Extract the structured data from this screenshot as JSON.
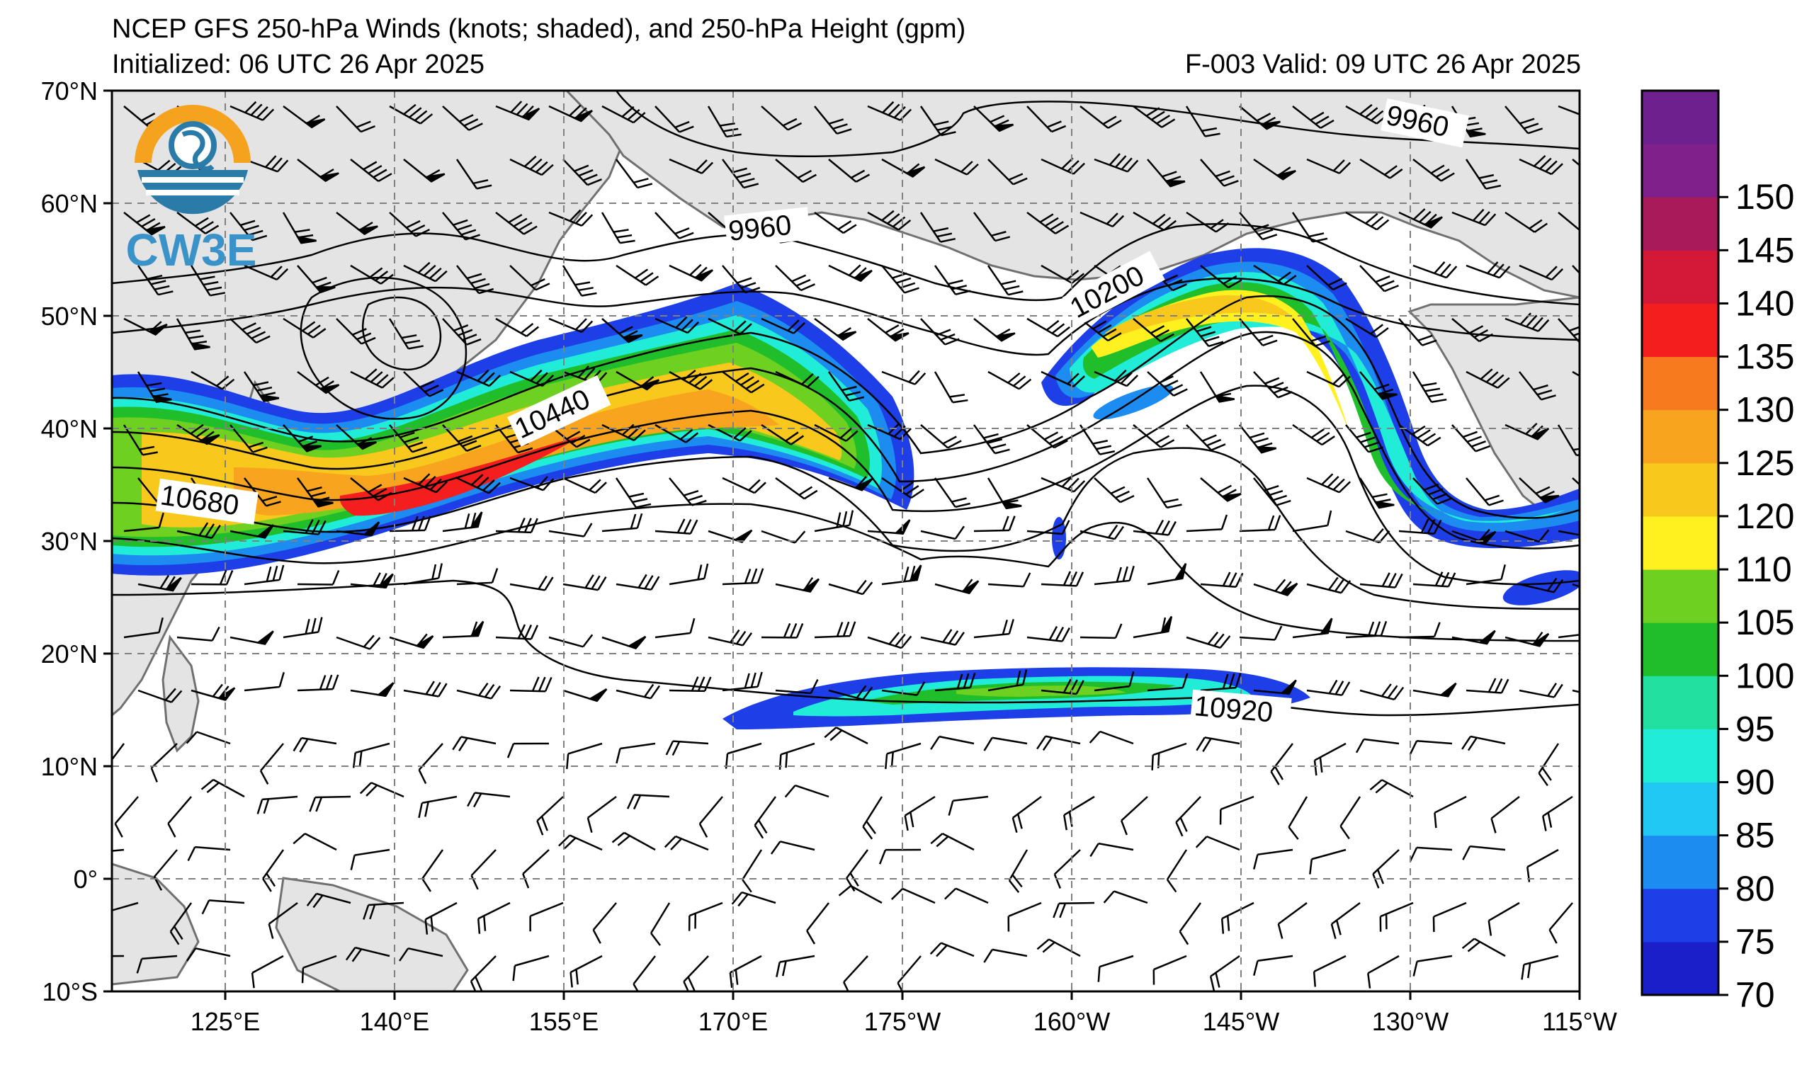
{
  "title": {
    "line1": "NCEP GFS 250-hPa Winds (knots; shaded), and 250-hPa Height (gpm)",
    "initialized": "Initialized: 06 UTC 26 Apr 2025",
    "valid": "F-003  Valid: 09 UTC 26 Apr 2025"
  },
  "logo": {
    "text": "CW3E",
    "icon": "cw3e-logo-icon"
  },
  "axes": {
    "lat_labels": [
      "70°N",
      "60°N",
      "50°N",
      "40°N",
      "30°N",
      "20°N",
      "10°N",
      "0°",
      "10°S"
    ],
    "lon_labels": [
      "125°E",
      "140°E",
      "155°E",
      "170°E",
      "175°W",
      "160°W",
      "145°W",
      "130°W",
      "115°W"
    ]
  },
  "contour_labels": [
    "9960",
    "9960",
    "10200",
    "10440",
    "10680",
    "10920"
  ],
  "colorbar": {
    "values": [
      "70",
      "75",
      "80",
      "85",
      "90",
      "95",
      "100",
      "105",
      "110",
      "120",
      "125",
      "130",
      "135",
      "140",
      "145",
      "150"
    ],
    "colors": [
      "#1a1fc8",
      "#1e3ee8",
      "#1c8cf0",
      "#22c8f4",
      "#20ecd8",
      "#22e0a0",
      "#20be2a",
      "#6ed020",
      "#fff020",
      "#f8c81c",
      "#f8a41e",
      "#f87a1e",
      "#f41e1e",
      "#d41838",
      "#a81a5a",
      "#80208a",
      "#6e208e"
    ]
  },
  "chart_data": {
    "type": "map",
    "extent": {
      "lon_min": 110,
      "lon_max": 245,
      "lat_min": -10,
      "lat_max": 70
    },
    "gridlines": true,
    "shading_variable": "250-hPa wind speed (knots)",
    "contour_variable": "250-hPa height (gpm)"
  }
}
